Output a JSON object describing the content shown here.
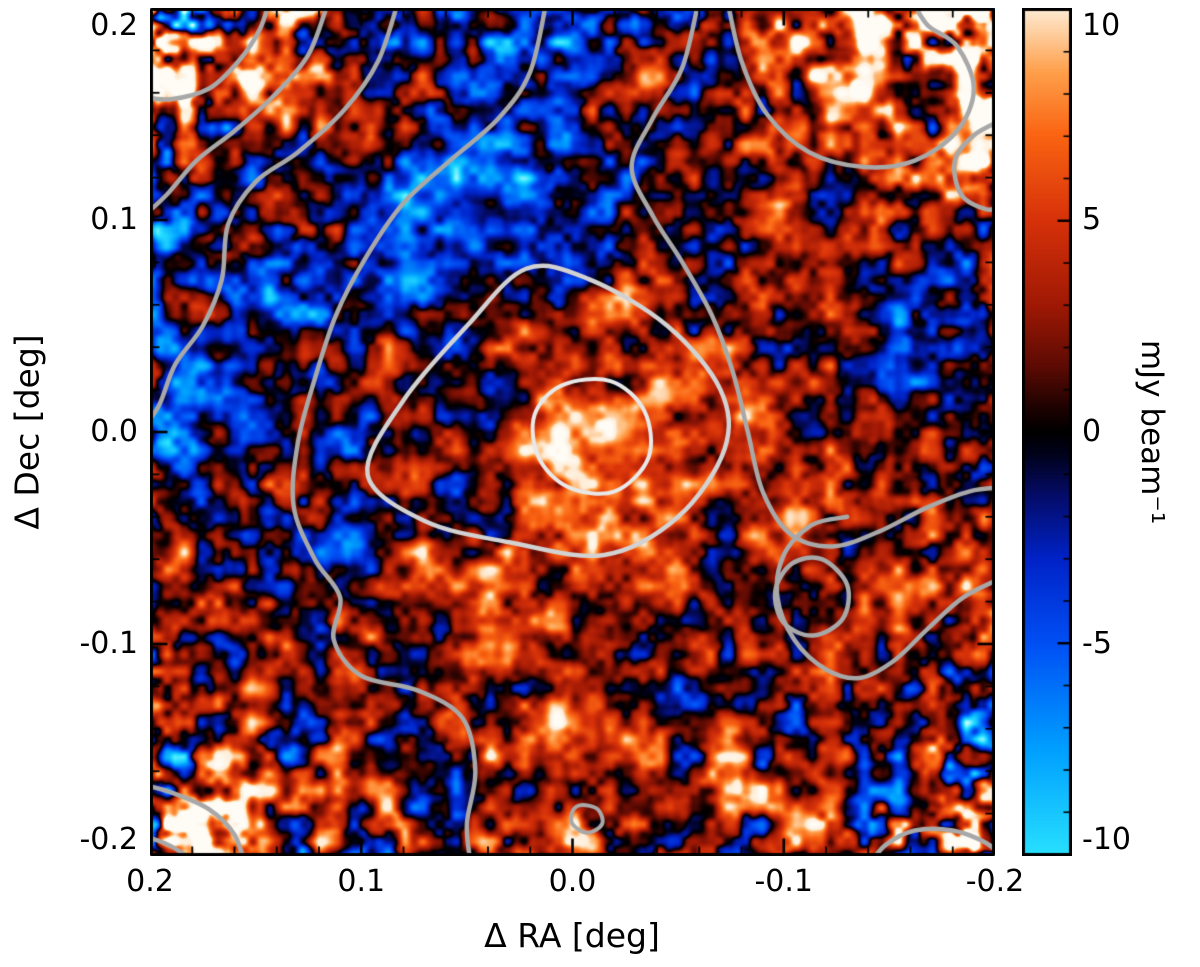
{
  "chart_data": {
    "type": "heatmap",
    "title": "",
    "xlabel": "Δ RA [deg]",
    "ylabel": "Δ Dec [deg]",
    "x_range": [
      0.2,
      -0.2
    ],
    "y_range": [
      -0.2,
      0.2
    ],
    "grid": false,
    "x_ticks": [
      {
        "label": "0.2",
        "value": 0.2
      },
      {
        "label": "0.1",
        "value": 0.1
      },
      {
        "label": "0.0",
        "value": 0.0
      },
      {
        "label": "-0.1",
        "value": -0.1
      },
      {
        "label": "-0.2",
        "value": -0.2
      }
    ],
    "y_ticks": [
      {
        "label": "0.2",
        "value": 0.2
      },
      {
        "label": "0.1",
        "value": 0.1
      },
      {
        "label": "0.0",
        "value": 0.0
      },
      {
        "label": "-0.1",
        "value": -0.1
      },
      {
        "label": "-0.2",
        "value": -0.2
      }
    ],
    "minor_tick_step": 0.02,
    "colorbar": {
      "label": "mJy beam⁻¹",
      "range": [
        -10,
        10
      ],
      "ticks": [
        {
          "label": "10",
          "value": 10
        },
        {
          "label": "5",
          "value": 5
        },
        {
          "label": "0",
          "value": 0
        },
        {
          "label": "-5",
          "value": -5
        },
        {
          "label": "-10",
          "value": -10
        }
      ]
    },
    "colormap": [
      [
        -12,
        215,
        255,
        255
      ],
      [
        -10,
        40,
        225,
        255
      ],
      [
        -7.5,
        0,
        160,
        255
      ],
      [
        -5,
        0,
        80,
        245
      ],
      [
        -3,
        0,
        35,
        200
      ],
      [
        -1.5,
        5,
        12,
        105
      ],
      [
        -0.5,
        1,
        2,
        25
      ],
      [
        0,
        0,
        0,
        0
      ],
      [
        0.5,
        25,
        2,
        1
      ],
      [
        1.5,
        90,
        10,
        3
      ],
      [
        3,
        160,
        25,
        5
      ],
      [
        5,
        215,
        50,
        10
      ],
      [
        7,
        250,
        100,
        18
      ],
      [
        8.5,
        255,
        160,
        75
      ],
      [
        10,
        254,
        236,
        212
      ],
      [
        12,
        255,
        252,
        246
      ]
    ],
    "field": {
      "description": "correlated noise map, rms ~3.3 mJy/beam, saturating toward map corners, positive source at field centre",
      "seed": 11,
      "scale": 4.2,
      "octaves": [
        {
          "cell": 70,
          "weight": 0.6
        },
        {
          "cell": 34,
          "weight": 0.85
        },
        {
          "cell": 17,
          "weight": 1.0
        },
        {
          "cell": 8.5,
          "weight": 0.45
        }
      ],
      "edge_amp": {
        "a4": 0.6,
        "a10": 3.0
      },
      "sources": [
        [
          0.0,
          0.0,
          3.5,
          0.05
        ],
        [
          -0.012,
          0.002,
          7,
          0.013
        ],
        [
          0.0,
          -0.045,
          2.0,
          0.1
        ],
        [
          0.17,
          0.175,
          9,
          0.04
        ],
        [
          -0.18,
          0.18,
          7,
          0.045
        ],
        [
          0.185,
          -0.185,
          6,
          0.035
        ],
        [
          -0.185,
          -0.19,
          6,
          0.035
        ],
        [
          0.13,
          0.04,
          -3,
          0.06
        ],
        [
          0.02,
          0.145,
          -2.5,
          0.06
        ],
        [
          -0.13,
          0.13,
          3,
          0.05
        ],
        [
          0.105,
          -0.045,
          -6,
          0.015
        ],
        [
          0.082,
          0.114,
          -5,
          0.012
        ],
        [
          -0.03,
          0.165,
          8,
          0.01
        ],
        [
          0.015,
          -0.145,
          8,
          0.012
        ],
        [
          -0.072,
          -0.162,
          7,
          0.012
        ],
        [
          -0.12,
          -0.07,
          2.5,
          0.04
        ],
        [
          0.05,
          -0.09,
          2.0,
          0.06
        ]
      ]
    },
    "contours": [
      {
        "name": "core",
        "color": "#e8e8e8",
        "width": 4,
        "closed": true,
        "points": [
          [
            0.018,
            0.008
          ],
          [
            0.005,
            0.022
          ],
          [
            -0.018,
            0.024
          ],
          [
            -0.034,
            0.01
          ],
          [
            -0.036,
            -0.012
          ],
          [
            -0.02,
            -0.028
          ],
          [
            0.002,
            -0.026
          ],
          [
            0.016,
            -0.012
          ]
        ]
      },
      {
        "name": "inner",
        "color": "#d2d2d2",
        "width": 4.5,
        "closed": true,
        "points": [
          [
            0.097,
            -0.02
          ],
          [
            0.08,
            0.015
          ],
          [
            0.05,
            0.05
          ],
          [
            0.022,
            0.077
          ],
          [
            -0.008,
            0.072
          ],
          [
            -0.045,
            0.05
          ],
          [
            -0.07,
            0.02
          ],
          [
            -0.072,
            -0.008
          ],
          [
            -0.05,
            -0.04
          ],
          [
            -0.015,
            -0.058
          ],
          [
            0.03,
            -0.052
          ],
          [
            0.07,
            -0.042
          ]
        ]
      },
      {
        "name": "outer-left",
        "color": "#a8a8a8",
        "width": 4.5,
        "closed": false,
        "points": [
          [
            0.012,
            0.205
          ],
          [
            0.02,
            0.17
          ],
          [
            0.035,
            0.148
          ],
          [
            0.058,
            0.128
          ],
          [
            0.08,
            0.108
          ],
          [
            0.098,
            0.082
          ],
          [
            0.112,
            0.055
          ],
          [
            0.122,
            0.025
          ],
          [
            0.13,
            -0.005
          ],
          [
            0.132,
            -0.035
          ],
          [
            0.122,
            -0.06
          ],
          [
            0.11,
            -0.078
          ],
          [
            0.113,
            -0.098
          ],
          [
            0.1,
            -0.115
          ],
          [
            0.073,
            -0.122
          ],
          [
            0.052,
            -0.135
          ],
          [
            0.046,
            -0.16
          ],
          [
            0.05,
            -0.185
          ],
          [
            0.048,
            -0.205
          ]
        ]
      },
      {
        "name": "outer-right",
        "color": "#a8a8a8",
        "width": 4.5,
        "closed": false,
        "points": [
          [
            -0.06,
            0.205
          ],
          [
            -0.052,
            0.172
          ],
          [
            -0.038,
            0.148
          ],
          [
            -0.028,
            0.125
          ],
          [
            -0.038,
            0.102
          ],
          [
            -0.052,
            0.08
          ],
          [
            -0.066,
            0.055
          ],
          [
            -0.076,
            0.028
          ],
          [
            -0.083,
            0.0
          ],
          [
            -0.09,
            -0.028
          ],
          [
            -0.103,
            -0.048
          ],
          [
            -0.123,
            -0.054
          ],
          [
            -0.145,
            -0.047
          ],
          [
            -0.167,
            -0.036
          ],
          [
            -0.188,
            -0.028
          ],
          [
            -0.205,
            -0.026
          ]
        ]
      },
      {
        "name": "right-lower",
        "color": "#a8a8a8",
        "width": 4.5,
        "closed": false,
        "points": [
          [
            -0.205,
            -0.068
          ],
          [
            -0.185,
            -0.078
          ],
          [
            -0.168,
            -0.093
          ],
          [
            -0.152,
            -0.108
          ],
          [
            -0.136,
            -0.116
          ],
          [
            -0.12,
            -0.112
          ],
          [
            -0.105,
            -0.098
          ],
          [
            -0.097,
            -0.078
          ],
          [
            -0.1,
            -0.058
          ],
          [
            -0.113,
            -0.044
          ],
          [
            -0.13,
            -0.04
          ]
        ]
      },
      {
        "name": "right-loop",
        "color": "#a8a8a8",
        "width": 4.5,
        "closed": true,
        "points": [
          [
            -0.104,
            -0.062
          ],
          [
            -0.096,
            -0.075
          ],
          [
            -0.1,
            -0.09
          ],
          [
            -0.114,
            -0.096
          ],
          [
            -0.128,
            -0.088
          ],
          [
            -0.13,
            -0.072
          ],
          [
            -0.118,
            -0.06
          ]
        ]
      },
      {
        "name": "upper-left-outer",
        "color": "#a8a8a8",
        "width": 4.5,
        "closed": false,
        "points": [
          [
            0.115,
            0.205
          ],
          [
            0.125,
            0.178
          ],
          [
            0.142,
            0.158
          ],
          [
            0.16,
            0.142
          ],
          [
            0.178,
            0.128
          ],
          [
            0.192,
            0.112
          ],
          [
            0.205,
            0.1
          ]
        ]
      },
      {
        "name": "upper-left-inner",
        "color": "#a8a8a8",
        "width": 4.5,
        "closed": false,
        "points": [
          [
            0.082,
            0.205
          ],
          [
            0.092,
            0.175
          ],
          [
            0.108,
            0.152
          ],
          [
            0.13,
            0.132
          ],
          [
            0.15,
            0.118
          ],
          [
            0.163,
            0.098
          ],
          [
            0.166,
            0.072
          ],
          [
            0.175,
            0.05
          ],
          [
            0.188,
            0.032
          ],
          [
            0.196,
            0.012
          ],
          [
            0.205,
            0.0
          ]
        ]
      },
      {
        "name": "top-left-corner",
        "color": "#a8a8a8",
        "width": 4.5,
        "closed": false,
        "points": [
          [
            0.205,
            0.158
          ],
          [
            0.19,
            0.157
          ],
          [
            0.172,
            0.162
          ],
          [
            0.158,
            0.175
          ],
          [
            0.148,
            0.19
          ],
          [
            0.143,
            0.205
          ]
        ]
      },
      {
        "name": "upper-right",
        "color": "#a8a8a8",
        "width": 4.5,
        "closed": false,
        "points": [
          [
            -0.073,
            0.205
          ],
          [
            -0.08,
            0.175
          ],
          [
            -0.092,
            0.15
          ],
          [
            -0.112,
            0.132
          ],
          [
            -0.138,
            0.125
          ],
          [
            -0.162,
            0.128
          ],
          [
            -0.182,
            0.142
          ],
          [
            -0.19,
            0.162
          ],
          [
            -0.182,
            0.182
          ],
          [
            -0.168,
            0.192
          ],
          [
            -0.16,
            0.205
          ]
        ]
      },
      {
        "name": "right-edge-loop",
        "color": "#a8a8a8",
        "width": 4.5,
        "closed": false,
        "points": [
          [
            -0.205,
            0.148
          ],
          [
            -0.19,
            0.14
          ],
          [
            -0.181,
            0.128
          ],
          [
            -0.184,
            0.112
          ],
          [
            -0.196,
            0.105
          ],
          [
            -0.205,
            0.107
          ]
        ]
      },
      {
        "name": "bottom-left",
        "color": "#a8a8a8",
        "width": 4.5,
        "closed": false,
        "points": [
          [
            0.205,
            -0.166
          ],
          [
            0.19,
            -0.17
          ],
          [
            0.172,
            -0.178
          ],
          [
            0.16,
            -0.19
          ],
          [
            0.155,
            -0.205
          ]
        ]
      },
      {
        "name": "bottom-left-corner",
        "color": "#a8a8a8",
        "width": 4.5,
        "closed": false,
        "points": [
          [
            0.205,
            -0.19
          ],
          [
            0.193,
            -0.194
          ],
          [
            0.183,
            -0.2
          ],
          [
            0.18,
            -0.205
          ]
        ]
      },
      {
        "name": "bottom-right-corner",
        "color": "#a8a8a8",
        "width": 4.5,
        "closed": false,
        "points": [
          [
            -0.14,
            -0.205
          ],
          [
            -0.148,
            -0.195
          ],
          [
            -0.162,
            -0.188
          ],
          [
            -0.18,
            -0.188
          ],
          [
            -0.196,
            -0.194
          ],
          [
            -0.205,
            -0.202
          ]
        ]
      },
      {
        "name": "bottom-dot",
        "color": "#a8a8a8",
        "width": 4,
        "closed": true,
        "points": [
          [
            -0.004,
            -0.176
          ],
          [
            -0.012,
            -0.178
          ],
          [
            -0.014,
            -0.185
          ],
          [
            -0.007,
            -0.189
          ],
          [
            0.0,
            -0.185
          ],
          [
            0.0,
            -0.179
          ]
        ]
      }
    ]
  }
}
